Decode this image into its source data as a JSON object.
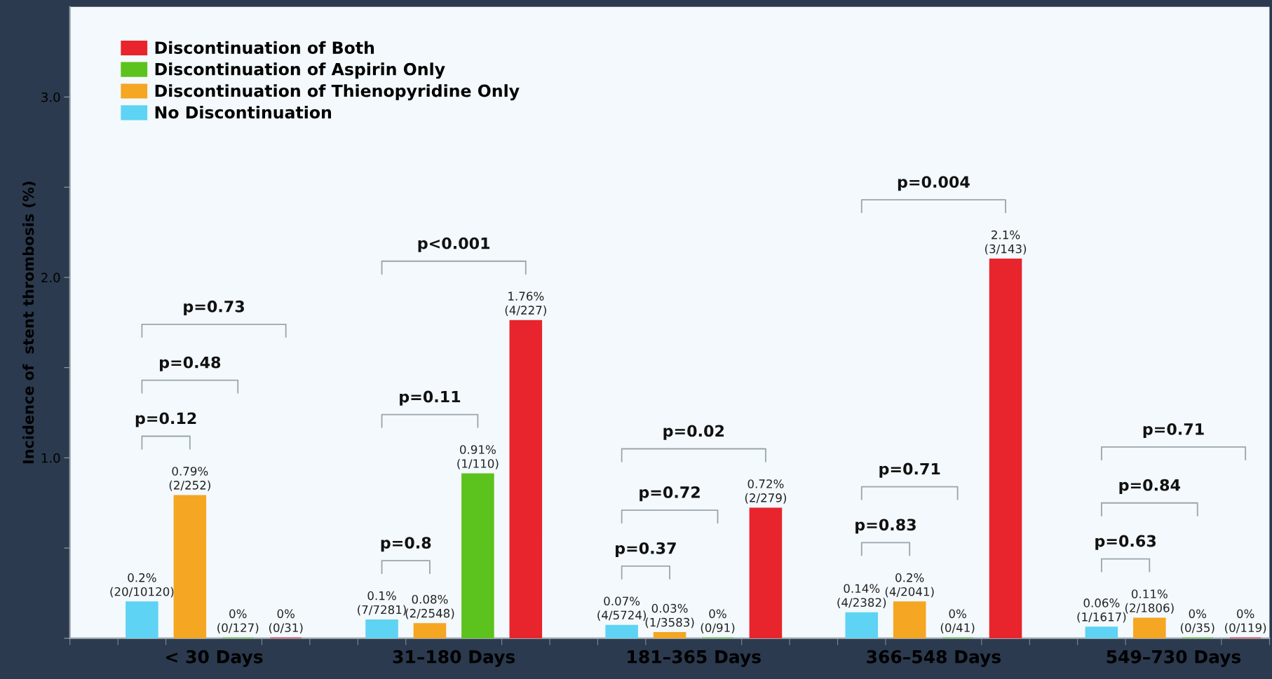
{
  "chart_data": {
    "type": "bar",
    "ylabel": "Incidence of  stent thrombosis (%)",
    "categories": [
      "< 30 Days",
      "31–180 Days",
      "181–365 Days",
      "366–548 Days",
      "549–730 Days"
    ],
    "ylim": [
      0,
      3.5
    ],
    "yticks": [
      {
        "value": 0,
        "label": null
      },
      {
        "value": 0.5,
        "label": null
      },
      {
        "value": 1,
        "label": "1.0"
      },
      {
        "value": 1.5,
        "label": null
      },
      {
        "value": 2,
        "label": "2.0"
      },
      {
        "value": 2.5,
        "label": null
      },
      {
        "value": 3,
        "label": "3.0"
      }
    ],
    "grid": false,
    "legend": "top left",
    "series": [
      {
        "name": "No Discontinuation",
        "color": "#5fd3f3",
        "values": [
          0.2,
          0.1,
          0.07,
          0.14,
          0.06
        ],
        "value_labels": [
          "0.2%\n(20/10120)",
          "0.1%\n(7/7281)",
          "0.07%\n(4/5724)",
          "0.14%\n(4/2382)",
          "0.06%\n(1/1617)"
        ]
      },
      {
        "name": "Discontinuation of Thienopyridine Only",
        "color": "#f5a623",
        "values": [
          0.79,
          0.08,
          0.03,
          0.2,
          0.11
        ],
        "value_labels": [
          "0.79%\n(2/252)",
          "0.08%\n(2/2548)",
          "0.03%\n(1/3583)",
          "0.2%\n(4/2041)",
          "0.11%\n(2/1806)"
        ]
      },
      {
        "name": "Discontinuation of Aspirin Only",
        "color": "#5cc21e",
        "values": [
          0,
          0.91,
          0,
          0,
          0
        ],
        "value_labels": [
          "0%\n(0/127)",
          "0.91%\n(1/110)",
          "0%\n(0/91)",
          "0%\n(0/41)",
          "0%\n(0/35)"
        ]
      },
      {
        "name": "Discontinuation of Both",
        "color": "#e8242c",
        "values": [
          0,
          1.76,
          0.72,
          2.1,
          0
        ],
        "value_labels": [
          "0%\n(0/31)",
          "1.76%\n(4/227)",
          "0.72%\n(2/279)",
          "2.1%\n(3/143)",
          "0%\n(0/119)"
        ]
      }
    ],
    "annotations": [
      "p=0.12",
      "p=0.48",
      "p=0.73",
      "p=0.8",
      "p=0.11",
      "p<0.001",
      "p=0.37",
      "p=0.72",
      "p=0.02",
      "p=0.83",
      "p=0.71",
      "p=0.004",
      "p=0.63",
      "p=0.84",
      "p=0.71"
    ]
  }
}
